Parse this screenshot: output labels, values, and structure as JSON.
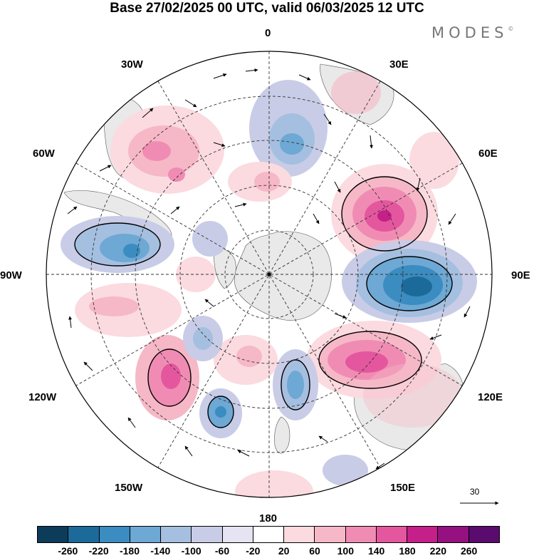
{
  "title": "Base 27/02/2025 00 UTC, valid 06/03/2025 12 UTC",
  "brand": {
    "text": "MODES",
    "mark": "©"
  },
  "longitude_labels": {
    "lon_0": "0",
    "lon_30e": "30E",
    "lon_60e": "60E",
    "lon_90e": "90E",
    "lon_120e": "120E",
    "lon_150e": "150E",
    "lon_180": "180",
    "lon_150w": "150W",
    "lon_120w": "120W",
    "lon_90w": "90W",
    "lon_60w": "60W",
    "lon_30w": "30W"
  },
  "wind_reference": {
    "value": "30"
  },
  "colorbar": {
    "colors": [
      "#0d3c5a",
      "#1c6a9a",
      "#3b8cc0",
      "#6ea8d4",
      "#a5bfe0",
      "#c9cce6",
      "#e6e4f2",
      "#ffffff",
      "#fbdbe0",
      "#f6b8c6",
      "#f08cb4",
      "#e4579e",
      "#c51f89",
      "#95117f",
      "#5a0b6e"
    ],
    "tick_labels": [
      "-260",
      "-220",
      "-180",
      "-140",
      "-100",
      "-60",
      "-20",
      "20",
      "60",
      "100",
      "140",
      "180",
      "220",
      "260"
    ]
  }
}
